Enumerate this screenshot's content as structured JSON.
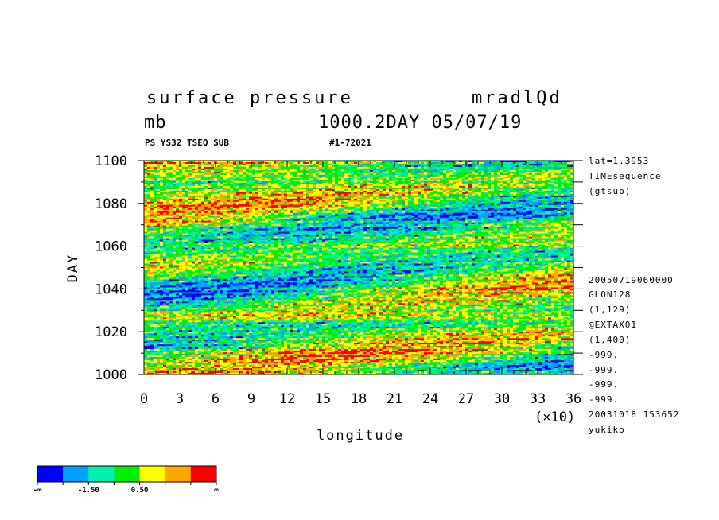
{
  "header": {
    "title_left": "surface pressure",
    "title_right": "mradlQd",
    "units": "mb",
    "level_date": "1000.2DAY 05/07/19",
    "sub_left": "PS YS32 TSEQ SUB",
    "sub_right": "#1-72021"
  },
  "info_top": [
    "lat=1.3953",
    "TIMEsequence",
    "(gtsub)"
  ],
  "info_bottom": [
    "20050719060000",
    "GLON128",
    "(1,129)",
    "@EXTAX01",
    "(1,400)",
    "-999.",
    "-999.",
    "-999.",
    "-999.",
    "20031018 153652",
    "yukiko"
  ],
  "colors": {
    "levels": [
      "#0000ff",
      "#00a0ff",
      "#00f0b0",
      "#00ee00",
      "#ffff00",
      "#ffa500",
      "#ff0000"
    ]
  },
  "chart_data": {
    "type": "heatmap",
    "title": "surface pressure",
    "xlabel": "longitude",
    "ylabel": "DAY",
    "x_multiplier_label": "(×10)",
    "xlim": [
      0,
      36
    ],
    "ylim": [
      1000,
      1100
    ],
    "x_ticks": [
      0,
      3,
      6,
      9,
      12,
      15,
      18,
      21,
      24,
      27,
      30,
      33,
      36
    ],
    "y_ticks": [
      1000,
      1020,
      1040,
      1060,
      1080,
      1100
    ],
    "colorbar": {
      "labels": [
        "-∞",
        "-1.50",
        "0.50",
        "∞"
      ],
      "bins": 7
    }
  }
}
